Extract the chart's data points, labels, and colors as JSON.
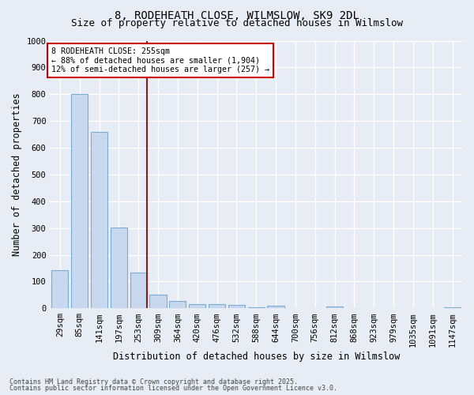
{
  "title1": "8, RODEHEATH CLOSE, WILMSLOW, SK9 2DL",
  "title2": "Size of property relative to detached houses in Wilmslow",
  "xlabel": "Distribution of detached houses by size in Wilmslow",
  "ylabel": "Number of detached properties",
  "categories": [
    "29sqm",
    "85sqm",
    "141sqm",
    "197sqm",
    "253sqm",
    "309sqm",
    "364sqm",
    "420sqm",
    "476sqm",
    "532sqm",
    "588sqm",
    "644sqm",
    "700sqm",
    "756sqm",
    "812sqm",
    "868sqm",
    "923sqm",
    "979sqm",
    "1035sqm",
    "1091sqm",
    "1147sqm"
  ],
  "values": [
    143,
    800,
    660,
    303,
    135,
    52,
    28,
    15,
    15,
    12,
    5,
    10,
    0,
    0,
    8,
    0,
    0,
    0,
    0,
    0,
    5
  ],
  "bar_color": "#c8d8ee",
  "bar_edge_color": "#7aadd4",
  "vline_color": "#8b1a1a",
  "ylim": [
    0,
    1000
  ],
  "yticks": [
    0,
    100,
    200,
    300,
    400,
    500,
    600,
    700,
    800,
    900,
    1000
  ],
  "annotation_text": "8 RODEHEATH CLOSE: 255sqm\n← 88% of detached houses are smaller (1,904)\n12% of semi-detached houses are larger (257) →",
  "annotation_box_color": "#ffffff",
  "annotation_box_edge": "#cc0000",
  "footer1": "Contains HM Land Registry data © Crown copyright and database right 2025.",
  "footer2": "Contains public sector information licensed under the Open Government Licence v3.0.",
  "bg_color": "#e8ecf5",
  "plot_bg_color": "#e8ecf5",
  "grid_color": "#ffffff",
  "title_fontsize": 10,
  "subtitle_fontsize": 9,
  "axis_label_fontsize": 8.5,
  "tick_fontsize": 7.5,
  "footer_fontsize": 6.0
}
